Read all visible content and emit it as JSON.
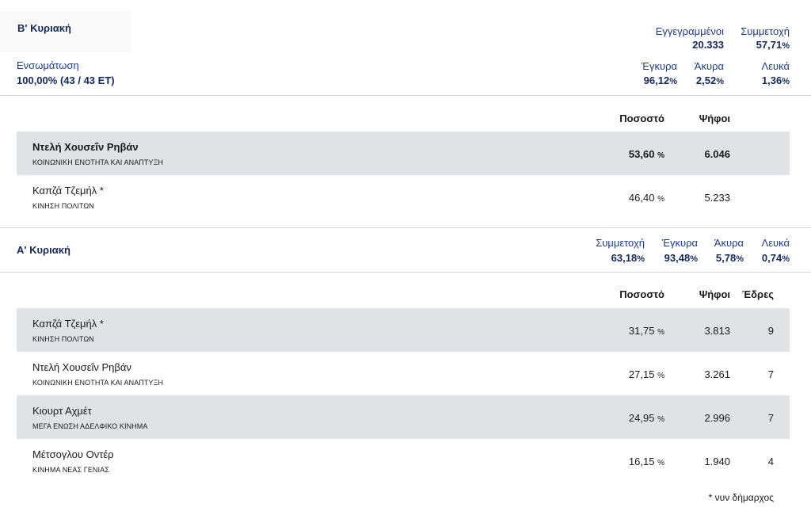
{
  "round2": {
    "title": "Β' Κυριακή",
    "integration_label": "Ενσωμάτωση",
    "integration_value": "100,00%",
    "integration_detail": "(43 / 43 ΕΤ)",
    "registered_label": "Εγγεγραμμένοι",
    "registered_value": "20.333",
    "turnout_label": "Συμμετοχή",
    "turnout_value": "57,71",
    "valid_label": "Έγκυρα",
    "valid_value": "96,12",
    "invalid_label": "Άκυρα",
    "invalid_value": "2,52",
    "blank_label": "Λευκά",
    "blank_value": "1,36",
    "col_percent": "Ποσοστό",
    "col_votes": "Ψήφοι",
    "candidates": [
      {
        "name": "Ντελή Χουσεΐν Ρηβάν",
        "party": "ΚΟΙΝΩΝΙΚΗ ΕΝΟΤΗΤΑ ΚΑΙ ΑΝΑΠΤΥΞΗ",
        "percent": "53,60",
        "votes": "6.046"
      },
      {
        "name": "Καπζά Τζεμήλ *",
        "party": "ΚΙΝΗΣΗ ΠΟΛΙΤΩΝ",
        "percent": "46,40",
        "votes": "5.233"
      }
    ]
  },
  "round1": {
    "title": "Α' Κυριακή",
    "turnout_label": "Συμμετοχή",
    "turnout_value": "63,18",
    "valid_label": "Έγκυρα",
    "valid_value": "93,48",
    "invalid_label": "Άκυρα",
    "invalid_value": "5,78",
    "blank_label": "Λευκά",
    "blank_value": "0,74",
    "col_percent": "Ποσοστό",
    "col_votes": "Ψήφοι",
    "col_seats": "Έδρες",
    "candidates": [
      {
        "name": "Καπζά Τζεμήλ *",
        "party": "ΚΙΝΗΣΗ ΠΟΛΙΤΩΝ",
        "percent": "31,75",
        "votes": "3.813",
        "seats": "9"
      },
      {
        "name": "Ντελή Χουσεΐν Ρηβάν",
        "party": "ΚΟΙΝΩΝΙΚΗ ΕΝΟΤΗΤΑ ΚΑΙ ΑΝΑΠΤΥΞΗ",
        "percent": "27,15",
        "votes": "3.261",
        "seats": "7"
      },
      {
        "name": "Κιουρτ Αχμέτ",
        "party": "ΜΕΓΑ ΕΝΩΣΗ ΑΔΕΛΦΙΚΟ ΚΙΝΗΜΑ",
        "percent": "24,95",
        "votes": "2.996",
        "seats": "7"
      },
      {
        "name": "Μέτσογλου Οντέρ",
        "party": "ΚΙΝΗΜΑ ΝΕΑΣ ΓΕΝΙΑΣ",
        "percent": "16,15",
        "votes": "1.940",
        "seats": "4"
      }
    ]
  },
  "percent_symbol": "%",
  "footnote": "* νυν δήμαρχος"
}
